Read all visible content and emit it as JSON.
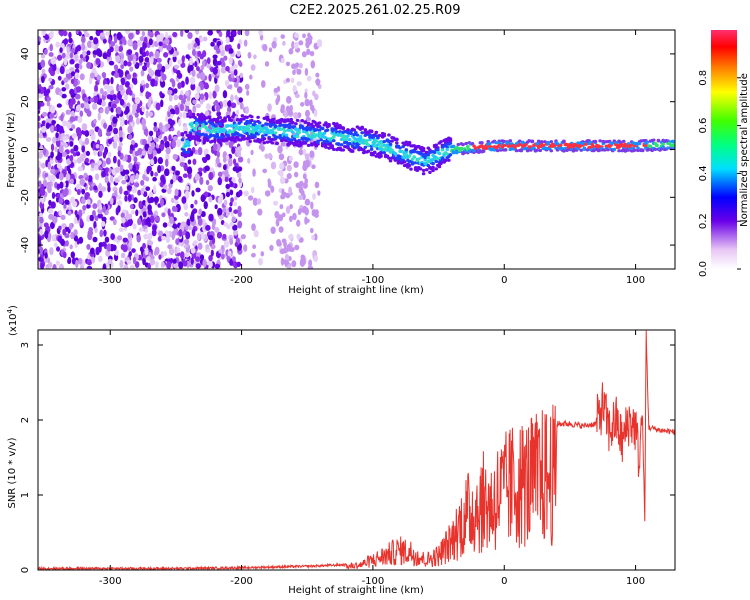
{
  "title": "C2E2.2025.261.02.25.R09",
  "chart_data": [
    {
      "type": "heatmap",
      "xlabel": "Height of straight line (km)",
      "ylabel": "Frequency (Hz)",
      "xlim": [
        -355,
        130
      ],
      "ylim": [
        -50,
        50
      ],
      "xticks": [
        -300,
        -200,
        -100,
        0,
        100
      ],
      "yticks": [
        -40,
        -20,
        0,
        20,
        40
      ],
      "colorbar": {
        "label": "Normalized spectral amplitude",
        "range": [
          0,
          1
        ],
        "ticks": [
          "0.0",
          "0.2",
          "0.4",
          "0.6",
          "0.8"
        ]
      },
      "ridge": {
        "x": [
          -240,
          -220,
          -200,
          -180,
          -160,
          -140,
          -120,
          -100,
          -80,
          -60,
          -40,
          -20,
          0,
          50,
          100,
          130
        ],
        "frequency": [
          10,
          8,
          9,
          8,
          7,
          6,
          5,
          3,
          -1,
          -5,
          0,
          1,
          1.5,
          1.5,
          1.5,
          2
        ]
      }
    },
    {
      "type": "line",
      "xlabel": "Height of straight line (km)",
      "ylabel": "SNR (10 * v/v)",
      "yscale_label": "(x10",
      "yscale_exp": "4",
      "xlim": [
        -355,
        130
      ],
      "ylim": [
        0,
        3.2
      ],
      "xticks": [
        -300,
        -200,
        -100,
        0,
        100
      ],
      "yticks": [
        0,
        1,
        2,
        3
      ],
      "series": [
        {
          "color": "#e8322c",
          "x": [
            -355,
            -300,
            -250,
            -200,
            -150,
            -120,
            -110,
            -100,
            -90,
            -80,
            -70,
            -60,
            -50,
            -40,
            -30,
            -25,
            -20,
            -15,
            -10,
            -5,
            0,
            5,
            10,
            20,
            30,
            40,
            50,
            60,
            70,
            75,
            80,
            85,
            90,
            95,
            100,
            103,
            105,
            107,
            108,
            110,
            120,
            130
          ],
          "y": [
            0.02,
            0.02,
            0.02,
            0.03,
            0.05,
            0.07,
            0.1,
            0.2,
            0.3,
            0.4,
            0.35,
            0.2,
            0.3,
            0.6,
            1.1,
            1.2,
            1.3,
            1.4,
            1.3,
            1.5,
            1.6,
            1.7,
            1.75,
            1.8,
            1.9,
            1.95,
            1.95,
            1.92,
            1.95,
            2.2,
            1.85,
            2.0,
            1.7,
            2.0,
            1.9,
            1.4,
            2.2,
            0.65,
            3.2,
            1.9,
            1.86,
            1.84
          ]
        }
      ]
    }
  ]
}
